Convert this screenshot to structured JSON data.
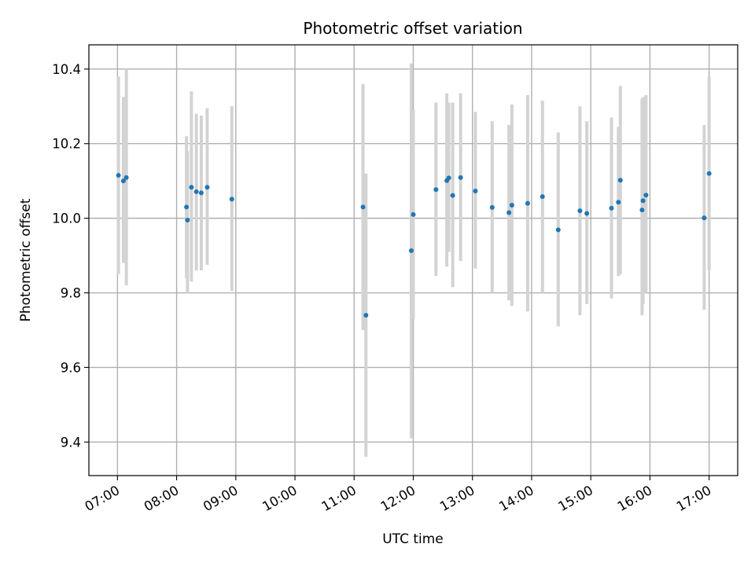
{
  "chart_data": {
    "type": "scatter",
    "title": "Photometric offset variation",
    "xlabel": "UTC time",
    "ylabel": "Photometric offset",
    "xlim": [
      "06:31",
      "17:29"
    ],
    "ylim": [
      9.31,
      10.465
    ],
    "grid": true,
    "x_ticks": [
      "07:00",
      "08:00",
      "09:00",
      "10:00",
      "11:00",
      "12:00",
      "13:00",
      "14:00",
      "15:00",
      "16:00",
      "17:00"
    ],
    "y_ticks": [
      9.4,
      9.6,
      9.8,
      10.0,
      10.2,
      10.4
    ],
    "y_tick_labels": [
      "9.4",
      "9.6",
      "9.8",
      "10.0",
      "10.2",
      "10.4"
    ],
    "colors": {
      "points": "#1f77b4",
      "error_bars": "#d3d3d3",
      "grid": "#b0b0b0"
    },
    "points": [
      {
        "time": "07:01",
        "y": 10.115,
        "low": 9.85,
        "high": 10.38
      },
      {
        "time": "07:06",
        "y": 10.1,
        "low": 9.88,
        "high": 10.325
      },
      {
        "time": "07:09",
        "y": 10.109,
        "low": 9.82,
        "high": 10.4
      },
      {
        "time": "08:10",
        "y": 10.03,
        "low": 9.84,
        "high": 10.22
      },
      {
        "time": "08:11",
        "y": 9.995,
        "low": 9.8,
        "high": 10.18
      },
      {
        "time": "08:15",
        "y": 10.083,
        "low": 9.83,
        "high": 10.34
      },
      {
        "time": "08:20",
        "y": 10.071,
        "low": 9.86,
        "high": 10.28
      },
      {
        "time": "08:25",
        "y": 10.068,
        "low": 9.86,
        "high": 10.275
      },
      {
        "time": "08:31",
        "y": 10.083,
        "low": 9.875,
        "high": 10.295
      },
      {
        "time": "08:56",
        "y": 10.051,
        "low": 9.805,
        "high": 10.3
      },
      {
        "time": "11:09",
        "y": 10.03,
        "low": 9.7,
        "high": 10.36
      },
      {
        "time": "11:12",
        "y": 9.74,
        "low": 9.36,
        "high": 10.12
      },
      {
        "time": "11:58",
        "y": 9.913,
        "low": 9.41,
        "high": 10.415
      },
      {
        "time": "12:00",
        "y": 10.01,
        "low": 9.73,
        "high": 10.29
      },
      {
        "time": "12:23",
        "y": 10.077,
        "low": 9.845,
        "high": 10.31
      },
      {
        "time": "12:34",
        "y": 10.101,
        "low": 9.87,
        "high": 10.335
      },
      {
        "time": "12:36",
        "y": 10.108,
        "low": 9.91,
        "high": 10.31
      },
      {
        "time": "12:40",
        "y": 10.061,
        "low": 9.815,
        "high": 10.31
      },
      {
        "time": "12:48",
        "y": 10.109,
        "low": 9.885,
        "high": 10.335
      },
      {
        "time": "13:03",
        "y": 10.073,
        "low": 9.865,
        "high": 10.285
      },
      {
        "time": "13:20",
        "y": 10.029,
        "low": 9.8,
        "high": 10.26
      },
      {
        "time": "13:37",
        "y": 10.015,
        "low": 9.78,
        "high": 10.25
      },
      {
        "time": "13:40",
        "y": 10.035,
        "low": 9.765,
        "high": 10.305
      },
      {
        "time": "13:56",
        "y": 10.04,
        "low": 9.75,
        "high": 10.33
      },
      {
        "time": "14:11",
        "y": 10.058,
        "low": 9.8,
        "high": 10.315
      },
      {
        "time": "14:27",
        "y": 9.969,
        "low": 9.71,
        "high": 10.23
      },
      {
        "time": "14:49",
        "y": 10.02,
        "low": 9.74,
        "high": 10.3
      },
      {
        "time": "14:56",
        "y": 10.013,
        "low": 9.77,
        "high": 10.26
      },
      {
        "time": "15:21",
        "y": 10.027,
        "low": 9.785,
        "high": 10.27
      },
      {
        "time": "15:28",
        "y": 10.043,
        "low": 9.845,
        "high": 10.245
      },
      {
        "time": "15:30",
        "y": 10.102,
        "low": 9.85,
        "high": 10.355
      },
      {
        "time": "15:52",
        "y": 10.022,
        "low": 9.74,
        "high": 10.32
      },
      {
        "time": "15:53",
        "y": 10.047,
        "low": 9.77,
        "high": 10.325
      },
      {
        "time": "15:56",
        "y": 10.062,
        "low": 9.8,
        "high": 10.33
      },
      {
        "time": "16:55",
        "y": 10.001,
        "low": 9.755,
        "high": 10.25
      },
      {
        "time": "17:00",
        "y": 10.12,
        "low": 9.86,
        "high": 10.38
      }
    ]
  }
}
